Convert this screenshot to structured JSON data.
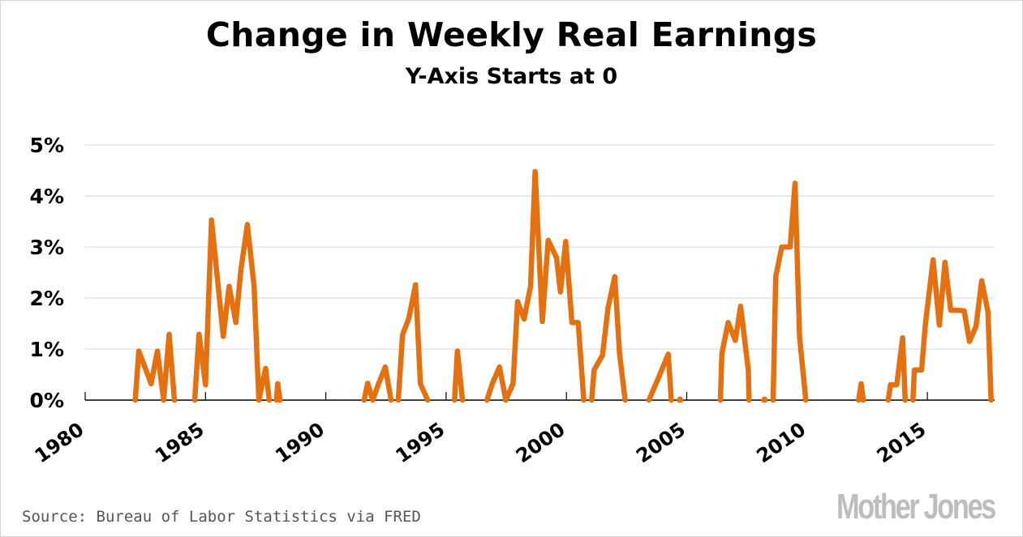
{
  "chart_data": {
    "type": "line",
    "title": "Change in Weekly Real Earnings",
    "subtitle": "Y-Axis Starts at 0",
    "xlabel": "",
    "ylabel": "",
    "xlim": [
      1980,
      2018
    ],
    "ylim": [
      0,
      5
    ],
    "x_ticks": [
      "1980",
      "1985",
      "1990",
      "1995",
      "2000",
      "2005",
      "2010",
      "2015"
    ],
    "y_ticks": [
      "0%",
      "1%",
      "2%",
      "3%",
      "4%",
      "5%"
    ],
    "grid": true,
    "line_color": "#e5700f",
    "segments": [
      [
        [
          1982.08,
          0
        ],
        [
          1982.23,
          0.96
        ],
        [
          1982.74,
          0.32
        ],
        [
          1983.0,
          0.96
        ],
        [
          1983.26,
          0
        ],
        [
          1983.49,
          1.29
        ],
        [
          1983.71,
          0
        ]
      ],
      [
        [
          1984.55,
          0
        ],
        [
          1984.73,
          1.29
        ],
        [
          1985.0,
          0.3
        ],
        [
          1985.25,
          3.53
        ],
        [
          1985.74,
          1.25
        ],
        [
          1985.98,
          2.23
        ],
        [
          1986.26,
          1.52
        ],
        [
          1986.47,
          2.55
        ],
        [
          1986.74,
          3.44
        ],
        [
          1987.02,
          2.23
        ],
        [
          1987.22,
          0
        ],
        [
          1987.5,
          0.62
        ],
        [
          1987.65,
          0
        ]
      ],
      [
        [
          1987.95,
          0
        ],
        [
          1988.0,
          0.32
        ],
        [
          1988.1,
          0
        ]
      ],
      [
        [
          1991.59,
          0
        ],
        [
          1991.74,
          0.33
        ],
        [
          1991.95,
          0
        ],
        [
          1992.19,
          0.32
        ],
        [
          1992.47,
          0.65
        ],
        [
          1992.71,
          0
        ]
      ],
      [
        [
          1993.01,
          0
        ],
        [
          1993.19,
          1.28
        ],
        [
          1993.45,
          1.6
        ],
        [
          1993.73,
          2.26
        ],
        [
          1993.93,
          0.32
        ],
        [
          1994.23,
          0
        ]
      ],
      [
        [
          1995.35,
          0
        ],
        [
          1995.47,
          0.96
        ],
        [
          1995.68,
          0
        ]
      ],
      [
        [
          1996.7,
          0
        ],
        [
          1996.92,
          0.32
        ],
        [
          1997.22,
          0.65
        ],
        [
          1997.48,
          0
        ],
        [
          1997.78,
          0.32
        ],
        [
          1997.97,
          1.93
        ],
        [
          1998.24,
          1.59
        ],
        [
          1998.51,
          2.23
        ],
        [
          1998.7,
          4.48
        ],
        [
          1999.0,
          1.54
        ],
        [
          1999.24,
          3.13
        ],
        [
          1999.59,
          2.79
        ],
        [
          1999.75,
          2.12
        ],
        [
          1999.97,
          3.11
        ],
        [
          2000.23,
          1.52
        ],
        [
          2000.49,
          1.52
        ],
        [
          2000.72,
          0
        ]
      ],
      [
        [
          2001.05,
          0
        ],
        [
          2001.15,
          0.59
        ],
        [
          2001.5,
          0.88
        ],
        [
          2001.73,
          1.81
        ],
        [
          2002.01,
          2.42
        ],
        [
          2002.21,
          0.91
        ],
        [
          2002.44,
          0
        ]
      ],
      [
        [
          2003.43,
          0
        ],
        [
          2003.82,
          0.43
        ],
        [
          2004.23,
          0.9
        ],
        [
          2004.36,
          0
        ]
      ],
      [
        [
          2004.69,
          0
        ],
        [
          2004.72,
          0.02
        ],
        [
          2004.75,
          0
        ]
      ],
      [
        [
          2006.4,
          0
        ],
        [
          2006.46,
          0.91
        ],
        [
          2006.72,
          1.52
        ],
        [
          2007.02,
          1.17
        ],
        [
          2007.24,
          1.84
        ],
        [
          2007.56,
          0.59
        ],
        [
          2007.59,
          0
        ]
      ],
      [
        [
          2008.2,
          0
        ],
        [
          2008.23,
          0.02
        ],
        [
          2008.26,
          0
        ]
      ],
      [
        [
          2008.59,
          0
        ],
        [
          2008.7,
          2.42
        ],
        [
          2008.95,
          3.0
        ],
        [
          2009.3,
          3.0
        ],
        [
          2009.5,
          4.25
        ],
        [
          2009.69,
          1.23
        ],
        [
          2009.95,
          0
        ]
      ],
      [
        [
          2012.14,
          0
        ],
        [
          2012.25,
          0.32
        ],
        [
          2012.34,
          0
        ]
      ],
      [
        [
          2013.37,
          0
        ],
        [
          2013.47,
          0.3
        ],
        [
          2013.73,
          0.3
        ],
        [
          2013.97,
          1.22
        ],
        [
          2014.08,
          0
        ]
      ],
      [
        [
          2014.4,
          0
        ],
        [
          2014.46,
          0.59
        ],
        [
          2014.76,
          0.59
        ],
        [
          2014.92,
          1.49
        ],
        [
          2015.24,
          2.75
        ],
        [
          2015.5,
          1.47
        ],
        [
          2015.73,
          2.7
        ],
        [
          2015.97,
          1.76
        ],
        [
          2016.27,
          1.76
        ],
        [
          2016.53,
          1.75
        ],
        [
          2016.75,
          1.15
        ],
        [
          2017.02,
          1.44
        ],
        [
          2017.26,
          2.34
        ],
        [
          2017.52,
          1.73
        ],
        [
          2017.65,
          0
        ]
      ]
    ]
  },
  "footer": {
    "source": "Source: Bureau of Labor Statistics via FRED",
    "logo": "Mother Jones"
  }
}
